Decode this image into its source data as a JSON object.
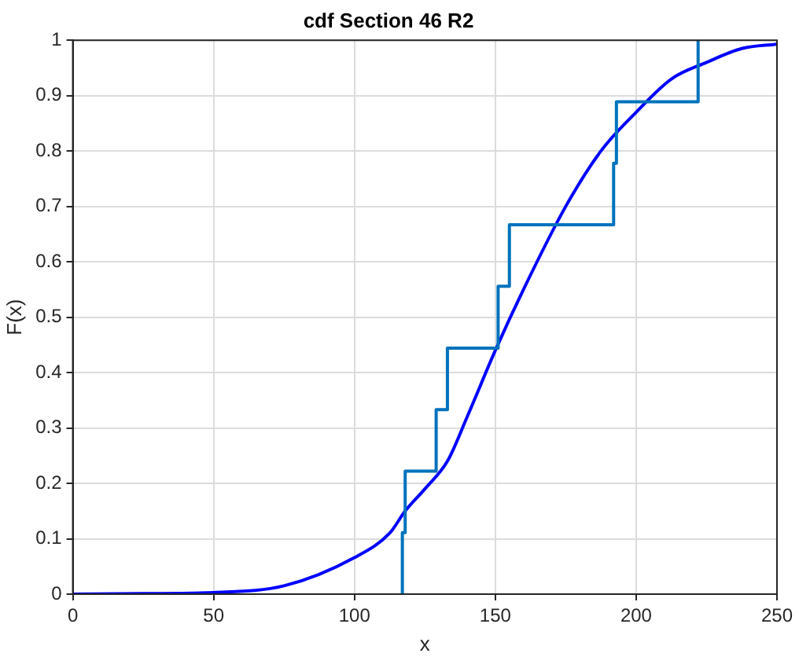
{
  "chart_data": {
    "type": "line",
    "title": "cdf Section 46 R2",
    "xlabel": "x",
    "ylabel": "F(x)",
    "series": [
      {
        "type": "step",
        "color": "#0072bd",
        "x": [
          117,
          117,
          118,
          129,
          133,
          151,
          155,
          192,
          193,
          222
        ],
        "values": [
          0,
          0.111,
          0.222,
          0.333,
          0.444,
          0.556,
          0.667,
          0.778,
          0.889,
          1
        ]
      },
      {
        "type": "line",
        "color": "#0000ff",
        "x": [
          0,
          25,
          50,
          75,
          100,
          112.5,
          118,
          125,
          133,
          140,
          150,
          160,
          175,
          187.5,
          200,
          212.5,
          225,
          237.5,
          250
        ],
        "values": [
          0,
          0.001,
          0.003,
          0.015,
          0.066,
          0.11,
          0.15,
          0.19,
          0.24,
          0.32,
          0.44,
          0.55,
          0.7,
          0.8,
          0.87,
          0.93,
          0.96,
          0.985,
          0.993
        ]
      }
    ],
    "xlim": [
      0,
      250
    ],
    "xticks": [
      0,
      50,
      100,
      150,
      200,
      250
    ],
    "ylim": [
      0,
      1
    ],
    "yticks": [
      0,
      0.1,
      0.2,
      0.3,
      0.4,
      0.5,
      0.6,
      0.7,
      0.8,
      0.9,
      1
    ],
    "grid": true,
    "legend": false
  }
}
